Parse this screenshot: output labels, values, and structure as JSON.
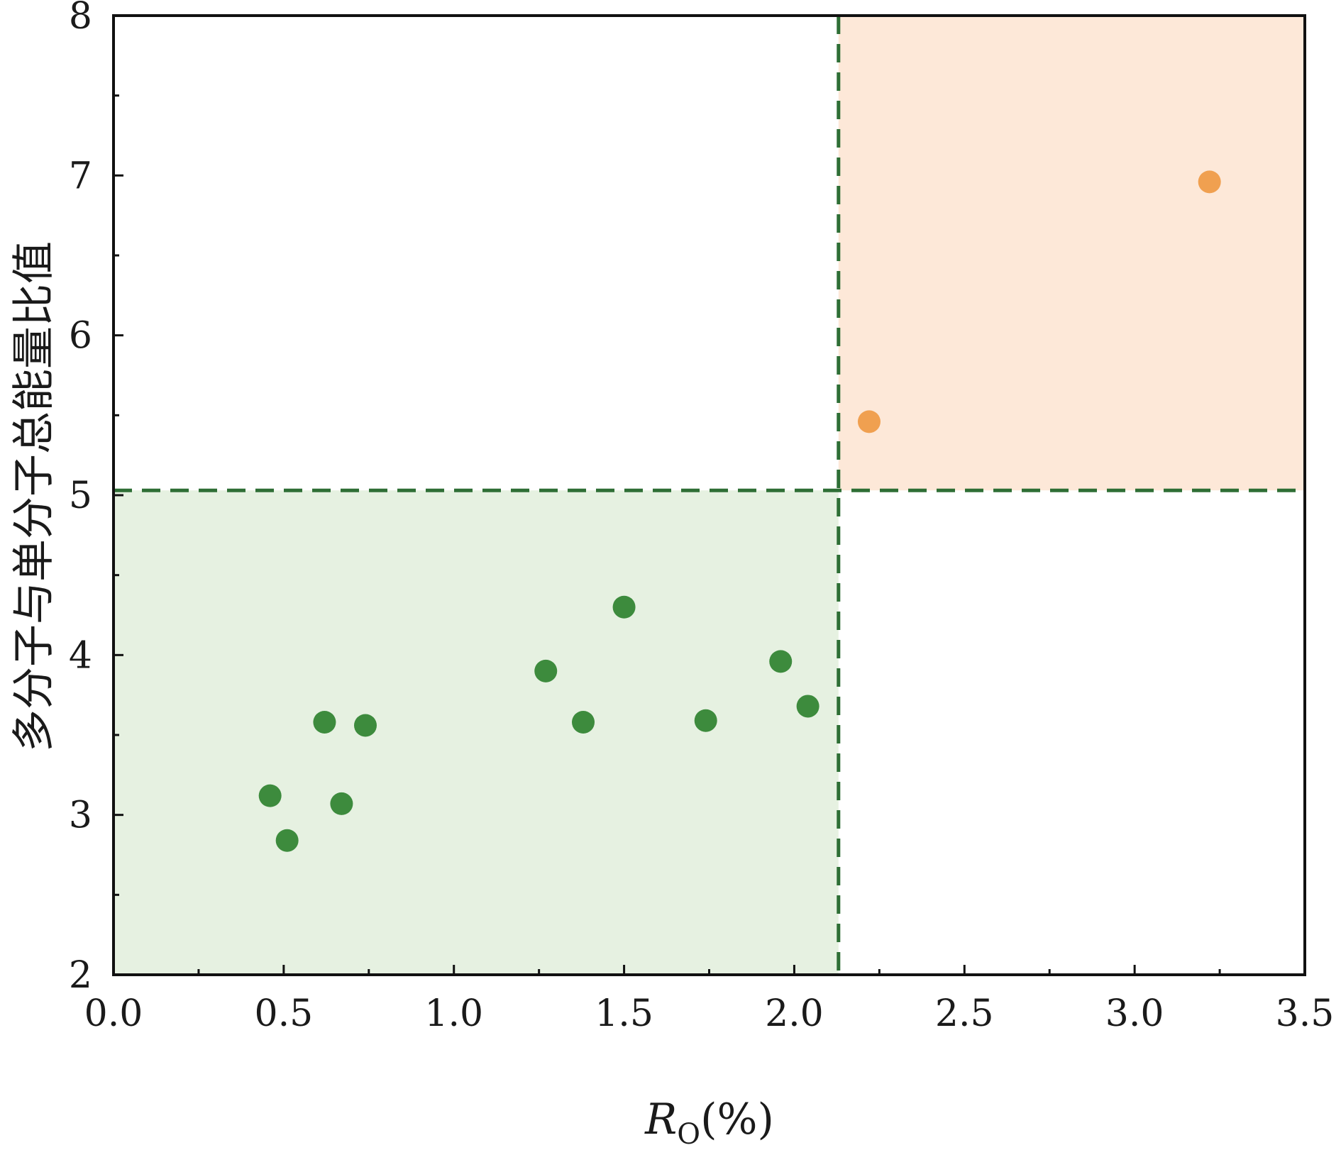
{
  "chart_data": {
    "type": "scatter",
    "xlabel": {
      "main": "R",
      "subscript": "O",
      "suffix": "(%)"
    },
    "ylabel": "多分子与单分子总能量比值",
    "xlim": [
      0.0,
      3.5
    ],
    "ylim": [
      2,
      8
    ],
    "x_ticks": [
      0.0,
      0.5,
      1.0,
      1.5,
      2.0,
      2.5,
      3.0,
      3.5
    ],
    "x_tick_labels": [
      "0.0",
      "0.5",
      "1.0",
      "1.5",
      "2.0",
      "2.5",
      "3.0",
      "3.5"
    ],
    "x_minor_ticks": [
      0.25,
      0.75,
      1.25,
      1.75,
      2.25,
      2.75,
      3.25
    ],
    "y_ticks": [
      2,
      3,
      4,
      5,
      6,
      7,
      8
    ],
    "y_tick_labels": [
      "2",
      "3",
      "4",
      "5",
      "6",
      "7",
      "8"
    ],
    "y_minor_ticks": [
      2.5,
      3.5,
      4.5,
      5.5,
      6.5,
      7.5
    ],
    "grid": false,
    "thresholds": {
      "x": 2.13,
      "y": 5.03
    },
    "regions": [
      {
        "x_range": [
          0.0,
          2.13
        ],
        "y_range": [
          2,
          5.03
        ],
        "color": "#e6f1e1"
      },
      {
        "x_range": [
          2.13,
          3.5
        ],
        "y_range": [
          5.03,
          8
        ],
        "color": "#fde8d8"
      }
    ],
    "series": [
      {
        "color": "#3d8b3d",
        "points": [
          {
            "x": 0.46,
            "y": 3.12
          },
          {
            "x": 0.51,
            "y": 2.84
          },
          {
            "x": 0.62,
            "y": 3.58
          },
          {
            "x": 0.67,
            "y": 3.07
          },
          {
            "x": 0.74,
            "y": 3.56
          },
          {
            "x": 1.27,
            "y": 3.9
          },
          {
            "x": 1.38,
            "y": 3.58
          },
          {
            "x": 1.5,
            "y": 4.3
          },
          {
            "x": 1.74,
            "y": 3.59
          },
          {
            "x": 1.96,
            "y": 3.96
          },
          {
            "x": 2.04,
            "y": 3.68
          }
        ]
      },
      {
        "color": "#f0a050",
        "points": [
          {
            "x": 2.22,
            "y": 5.46
          },
          {
            "x": 3.22,
            "y": 6.96
          }
        ]
      }
    ],
    "threshold_line_color": "#2e6e35"
  }
}
